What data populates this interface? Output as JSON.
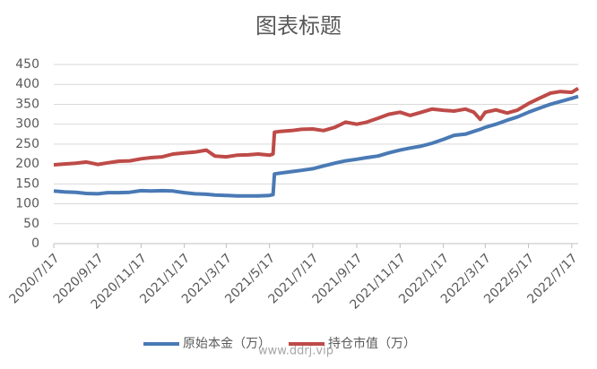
{
  "chart_data": {
    "type": "line",
    "title": "图表标题",
    "watermark": "www.ddrj.vip",
    "x": [
      "2020/7/17",
      "2020/8/1",
      "2020/8/17",
      "2020/9/1",
      "2020/9/17",
      "2020/10/1",
      "2020/10/17",
      "2020/11/1",
      "2020/11/17",
      "2020/12/1",
      "2020/12/17",
      "2021/1/1",
      "2021/1/17",
      "2021/2/1",
      "2021/2/17",
      "2021/3/1",
      "2021/3/17",
      "2021/4/1",
      "2021/4/17",
      "2021/5/1",
      "2021/5/17",
      "2021/5/22",
      "2021/5/24",
      "2021/6/1",
      "2021/6/17",
      "2021/7/1",
      "2021/7/17",
      "2021/8/1",
      "2021/8/17",
      "2021/9/1",
      "2021/9/17",
      "2021/10/1",
      "2021/10/17",
      "2021/11/1",
      "2021/11/17",
      "2021/12/1",
      "2021/12/17",
      "2022/1/1",
      "2022/1/17",
      "2022/2/1",
      "2022/2/17",
      "2022/3/1",
      "2022/3/10",
      "2022/3/17",
      "2022/4/1",
      "2022/4/17",
      "2022/5/1",
      "2022/5/17",
      "2022/6/1",
      "2022/6/17",
      "2022/7/1",
      "2022/7/17",
      "2022/7/26"
    ],
    "series": [
      {
        "name": "原始本金（万）",
        "color": "#4a7ab5",
        "values": [
          132,
          130,
          129,
          126,
          125,
          128,
          128,
          129,
          133,
          132,
          133,
          132,
          128,
          125,
          124,
          122,
          121,
          120,
          120,
          120,
          121,
          123,
          175,
          177,
          181,
          184,
          188,
          195,
          202,
          208,
          212,
          216,
          220,
          228,
          235,
          240,
          245,
          252,
          262,
          272,
          275,
          282,
          287,
          292,
          300,
          310,
          318,
          330,
          340,
          350,
          357,
          365,
          370
        ]
      },
      {
        "name": "持仓市值（万）",
        "color": "#be4b48",
        "values": [
          198,
          200,
          202,
          205,
          199,
          203,
          207,
          208,
          213,
          216,
          218,
          225,
          228,
          230,
          235,
          220,
          218,
          222,
          223,
          225,
          222,
          225,
          280,
          282,
          284,
          287,
          288,
          284,
          292,
          305,
          300,
          305,
          315,
          325,
          330,
          322,
          330,
          338,
          335,
          333,
          338,
          330,
          312,
          330,
          336,
          328,
          335,
          352,
          365,
          378,
          382,
          380,
          390
        ]
      }
    ],
    "xlim": [
      "2020/7/17",
      "2022/7/26"
    ],
    "xticks": [
      "2020/7/17",
      "2020/9/17",
      "2020/11/17",
      "2021/1/17",
      "2021/3/17",
      "2021/5/17",
      "2021/7/17",
      "2021/9/17",
      "2021/11/17",
      "2022/1/17",
      "2022/3/17",
      "2022/5/17",
      "2022/7/17"
    ],
    "ylim": [
      0,
      450
    ],
    "yticks": [
      0,
      50,
      100,
      150,
      200,
      250,
      300,
      350,
      400,
      450
    ],
    "grid": true,
    "legend": "bottom"
  }
}
